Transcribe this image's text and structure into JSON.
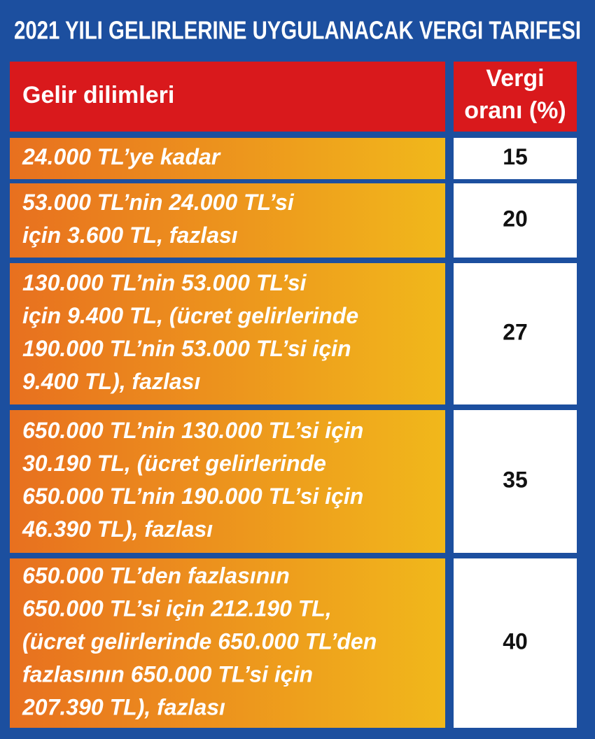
{
  "title": "2021 YILI GELIRLERINE UYGULANACAK VERGI TARIFESI",
  "header": {
    "bracket": "Gelir dilimleri",
    "rate": [
      "Vergi",
      "oranı (%)"
    ]
  },
  "rows": [
    {
      "bracket": [
        "24.000 TL’ye kadar"
      ],
      "rate": 15
    },
    {
      "bracket": [
        "53.000 TL’nin 24.000 TL’si",
        "için 3.600 TL, fazlası"
      ],
      "rate": 20
    },
    {
      "bracket": [
        "130.000 TL’nin 53.000 TL’si",
        "için 9.400 TL, (ücret gelirlerinde",
        "190.000 TL’nin 53.000 TL’si için",
        "9.400 TL), fazlası"
      ],
      "rate": 27
    },
    {
      "bracket": [
        "650.000 TL’nin 130.000 TL’si için",
        "30.190 TL, (ücret gelirlerinde",
        "650.000 TL’nin 190.000 TL’si için",
        "46.390 TL), fazlası"
      ],
      "rate": 35
    },
    {
      "bracket": [
        "650.000 TL’den fazlasının",
        "650.000 TL’si için 212.190 TL,",
        "(ücret gelirlerinde 650.000 TL’den",
        "fazlasının 650.000 TL’si için",
        "207.390 TL), fazlası"
      ],
      "rate": 40
    }
  ]
}
